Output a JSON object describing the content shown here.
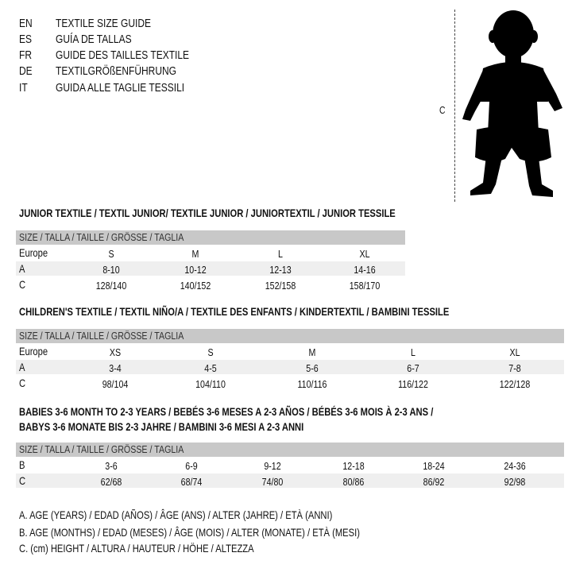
{
  "languages": [
    {
      "code": "EN",
      "title": "TEXTILE SIZE GUIDE"
    },
    {
      "code": "ES",
      "title": "GUÍA DE TALLAS"
    },
    {
      "code": "FR",
      "title": "GUIDE DES TAILLES TEXTILE"
    },
    {
      "code": "DE",
      "title": "TEXTILGRÖßENFÜHRUNG"
    },
    {
      "code": "IT",
      "title": "GUIDA ALLE TAGLIE TESSILI"
    }
  ],
  "figure": {
    "label": "C",
    "icon": "child-silhouette-icon"
  },
  "size_header": "SIZE / TALLA / TAILLE / GRÖSSE / TAGLIA",
  "junior": {
    "title": "JUNIOR TEXTILE / TEXTIL JUNIOR/ TEXTILE JUNIOR / JUNIORTEXTIL / JUNIOR TESSILE",
    "rows": [
      {
        "label": "Europe",
        "values": [
          "S",
          "M",
          "L",
          "XL"
        ]
      },
      {
        "label": "A",
        "values": [
          "8-10",
          "10-12",
          "12-13",
          "14-16"
        ]
      },
      {
        "label": "C",
        "values": [
          "128/140",
          "140/152",
          "152/158",
          "158/170"
        ]
      }
    ]
  },
  "children": {
    "title": "CHILDREN'S TEXTILE / TEXTIL NIÑO/A / TEXTILE DES ENFANTS / KINDERTEXTIL / BAMBINI TESSILE",
    "rows": [
      {
        "label": "Europe",
        "values": [
          "XS",
          "S",
          "M",
          "L",
          "XL"
        ]
      },
      {
        "label": "A",
        "values": [
          "3-4",
          "4-5",
          "5-6",
          "6-7",
          "7-8"
        ]
      },
      {
        "label": "C",
        "values": [
          "98/104",
          "104/110",
          "110/116",
          "116/122",
          "122/128"
        ]
      }
    ]
  },
  "babies": {
    "title_line1": "BABIES 3-6 MONTH TO 2-3 YEARS / BEBÉS 3-6 MESES A 2-3 AÑOS / BÉBÉS 3-6 MOIS À 2-3 ANS /",
    "title_line2": "BABYS 3-6 MONATE BIS 2-3 JAHRE / BAMBINI 3-6 MESI A 2-3 ANNI",
    "rows": [
      {
        "label": "B",
        "values": [
          "3-6",
          "6-9",
          "9-12",
          "12-18",
          "18-24",
          "24-36"
        ]
      },
      {
        "label": "C",
        "values": [
          "62/68",
          "68/74",
          "74/80",
          "80/86",
          "86/92",
          "92/98"
        ]
      }
    ]
  },
  "legend": [
    "A. AGE (YEARS) / EDAD (AÑOS) / ÂGE (ANS) / ALTER (JAHRE) / ETÀ (ANNI)",
    "B. AGE (MONTHS) / EDAD (MESES) / ÂGE (MOIS) / ALTER (MONATE) / ETÀ (MESI)",
    "C. (cm) HEIGHT / ALTURA / HAUTEUR / HÖHE / ALTEZZA"
  ],
  "colors": {
    "header_bar": "#c8c8c8",
    "row_band": "#efefef"
  }
}
